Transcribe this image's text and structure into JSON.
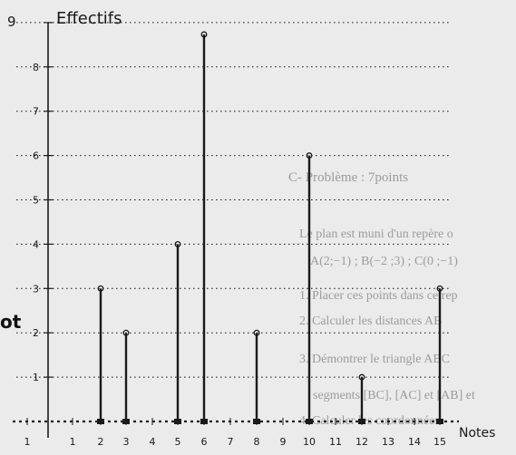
{
  "chart_data": {
    "type": "bar",
    "style": "stick (vertical lines with hollow circles at top)",
    "ylabel": "Effectifs",
    "xlabel": "Notes",
    "x_ticks": [
      "1",
      "1",
      "2",
      "3",
      "4",
      "5",
      "6",
      "7",
      "8",
      "9",
      "10",
      "11",
      "12",
      "13",
      "14",
      "15"
    ],
    "y_ticks": [
      "1",
      "2",
      "3",
      "4",
      "5",
      "6",
      "7",
      "8",
      "9"
    ],
    "y_top_label": "9",
    "ylim": [
      0,
      9
    ],
    "grid": "horizontal dotted lines",
    "points": [
      {
        "x": 2,
        "y": 3
      },
      {
        "x": 3,
        "y": 2
      },
      {
        "x": 5,
        "y": 4
      },
      {
        "x": 6,
        "y": 9
      },
      {
        "x": 8,
        "y": 2
      },
      {
        "x": 10,
        "y": 6
      },
      {
        "x": 12,
        "y": 1
      },
      {
        "x": 15,
        "y": 3
      }
    ]
  },
  "background_text": {
    "problem_heading": "C- Problème : 7points",
    "line_1": "Le plan est muni d'un repère o",
    "line_2": "A(2;−1) ; B(−2 ;3) ; C(0 ;−1)",
    "line_3": "1. Placer ces points dans ce rep",
    "line_4": "2. Calculer les distances AB",
    "line_5": "3. Démontrer le triangle ABC",
    "line_6": "segments [BC], [AC] et [AB] et",
    "line_7": "4. Calculer les coordonnées",
    "left_fragment": "ot"
  },
  "colors": {
    "ink": "#1a1a1a",
    "paper": "#ebebeb",
    "faded_print": "#5a5a5a"
  }
}
